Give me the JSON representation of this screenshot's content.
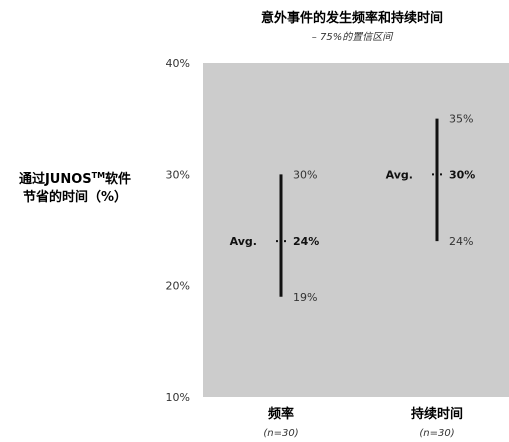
{
  "chart_data": {
    "type": "range",
    "title": "意外事件的发生频率和持续时间",
    "subtitle": "– 75%的置信区间",
    "ylabel": {
      "line1_prefix": "通过JUNOS",
      "line1_sup": "TM",
      "line1_suffix": "软件",
      "line2": "节省的时间（%）"
    },
    "ylim": [
      10,
      40
    ],
    "yticks": [
      "10%",
      "20%",
      "30%",
      "40%"
    ],
    "ytick_values": [
      10,
      20,
      30,
      40
    ],
    "avg_label": "Avg.",
    "categories": [
      {
        "name": "频率",
        "n": "(n=30)",
        "low": 19,
        "avg": 24,
        "high": 30,
        "low_label": "19%",
        "avg_label": "24%",
        "high_label": "30%"
      },
      {
        "name": "持续时间",
        "n": "(n=30)",
        "low": 24,
        "avg": 30,
        "high": 35,
        "low_label": "24%",
        "avg_label": "30%",
        "high_label": "35%"
      }
    ],
    "grid": false,
    "colors": {
      "plot_bg": "#cccccc",
      "bar": "#111111"
    }
  }
}
